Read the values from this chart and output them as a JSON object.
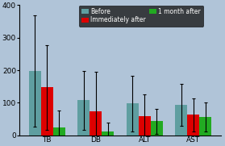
{
  "categories": [
    "TB",
    "DB",
    "ALT",
    "AST"
  ],
  "bar_labels": [
    "Before",
    "Immediately after",
    "1 month after"
  ],
  "bar_colors": [
    "#5f9ea0",
    "#dd0000",
    "#22aa22"
  ],
  "values": [
    [
      198,
      108,
      98,
      94
    ],
    [
      148,
      75,
      60,
      63
    ],
    [
      25,
      12,
      43,
      57
    ]
  ],
  "errors": [
    [
      170,
      90,
      85,
      65
    ],
    [
      130,
      120,
      65,
      50
    ],
    [
      52,
      28,
      38,
      45
    ]
  ],
  "ylim": [
    0,
    400
  ],
  "yticks": [
    0,
    100,
    200,
    300,
    400
  ],
  "background_color": "#b0c4d8",
  "legend_bg": "#1a1a1a",
  "legend_text_color": "white"
}
